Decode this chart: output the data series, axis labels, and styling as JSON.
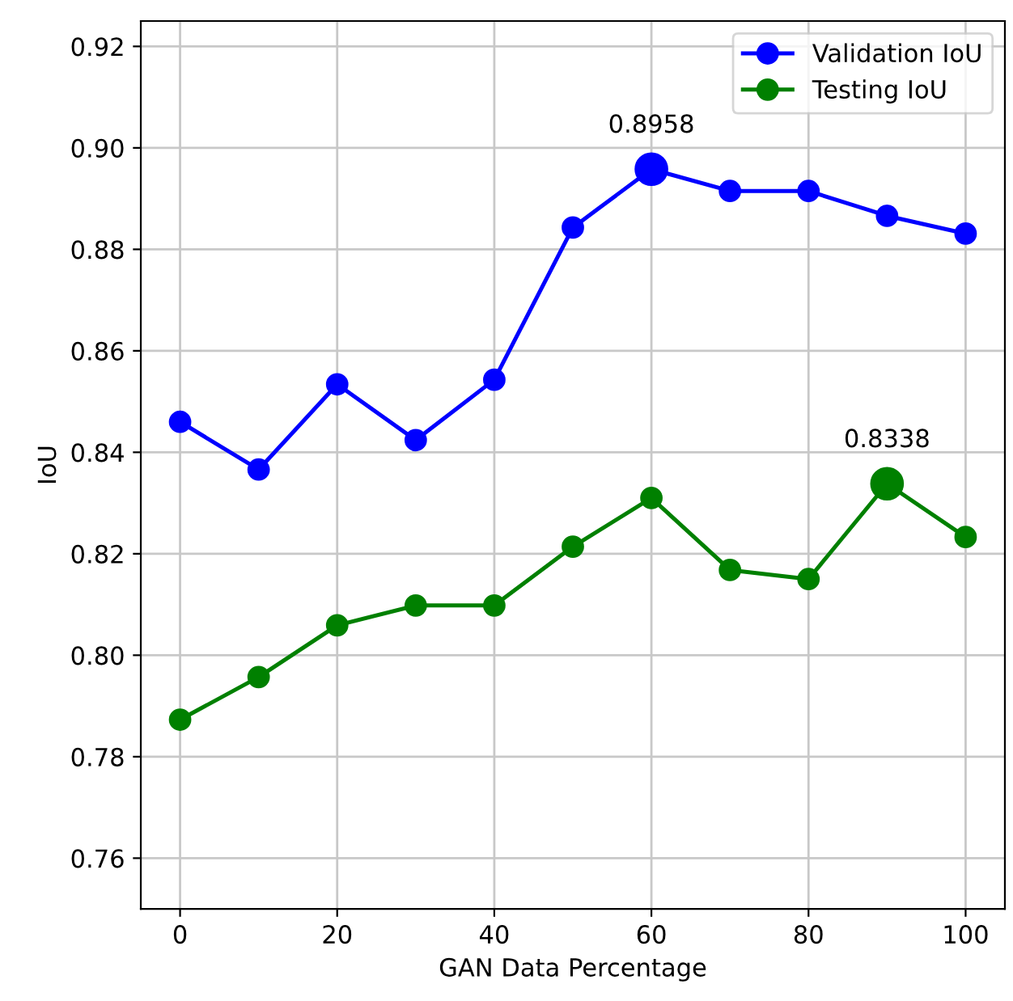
{
  "chart_data": {
    "type": "line",
    "xlabel": "GAN Data Percentage",
    "ylabel": "IoU",
    "x": [
      0,
      10,
      20,
      30,
      40,
      50,
      60,
      70,
      80,
      90,
      100
    ],
    "series": [
      {
        "name": "Validation IoU",
        "color": "#0000ff",
        "values": [
          0.846,
          0.8366,
          0.8534,
          0.8424,
          0.8543,
          0.8843,
          0.8958,
          0.8915,
          0.8915,
          0.8866,
          0.8831
        ]
      },
      {
        "name": "Testing IoU",
        "color": "#008000",
        "values": [
          0.7873,
          0.7957,
          0.8059,
          0.8098,
          0.8098,
          0.8214,
          0.831,
          0.8168,
          0.815,
          0.8338,
          0.8233
        ]
      }
    ],
    "annotations": [
      {
        "text": "0.8958",
        "x": 60,
        "y": 0.8958
      },
      {
        "text": "0.8338",
        "x": 90,
        "y": 0.8338
      }
    ],
    "xlim": [
      -5,
      105
    ],
    "xticks": [
      0,
      20,
      40,
      60,
      80,
      100
    ],
    "ylim": [
      0.75,
      0.925
    ],
    "yticks": [
      0.76,
      0.78,
      {
        "value": 0.8,
        "label": "0.80"
      },
      0.82,
      0.84,
      0.86,
      0.88,
      {
        "value": 0.9,
        "label": "0.90"
      },
      0.92
    ],
    "grid": true,
    "legend": "top right",
    "marker": "circle",
    "line_style": "solid"
  }
}
